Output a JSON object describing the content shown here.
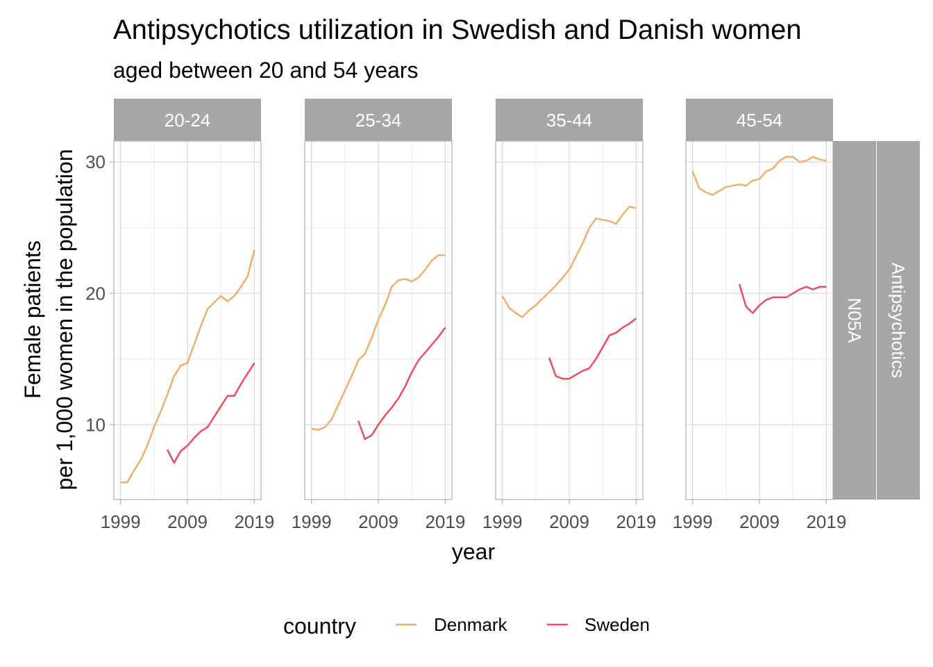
{
  "chart_data": {
    "type": "line",
    "title": "Antipsychotics utilization in Swedish and Danish women",
    "subtitle": "aged between 20 and 54 years",
    "xlabel": "year",
    "ylabel_line1": "Female patients",
    "ylabel_line2": "per 1,000 women in the population",
    "xlim": [
      1998,
      2020
    ],
    "ylim": [
      4.3,
      31.6
    ],
    "x_ticks": [
      1999,
      2009,
      2019
    ],
    "x_tick_labels": [
      "1999",
      "2009",
      "2019"
    ],
    "y_ticks": [
      10,
      20,
      30
    ],
    "y_tick_labels": [
      "10",
      "20",
      "30"
    ],
    "grid": true,
    "legend_position": "bottom",
    "legend_title": "country",
    "row_strips": [
      "N05A",
      "Antipsychotics"
    ],
    "colors": {
      "Denmark": "#EBB06E",
      "Sweden": "#EE4B5F"
    },
    "panels": [
      {
        "label": "20-24",
        "series": [
          {
            "name": "Denmark",
            "x": [
              1999,
              2000,
              2001,
              2002,
              2003,
              2004,
              2005,
              2006,
              2007,
              2008,
              2009,
              2010,
              2011,
              2012,
              2013,
              2014,
              2015,
              2016,
              2017,
              2018,
              2019
            ],
            "y": [
              5.6,
              5.6,
              6.5,
              7.3,
              8.4,
              9.8,
              11.0,
              12.3,
              13.7,
              14.5,
              14.7,
              16.1,
              17.5,
              18.8,
              19.3,
              19.8,
              19.4,
              19.8,
              20.5,
              21.3,
              23.3
            ]
          },
          {
            "name": "Sweden",
            "x": [
              2006,
              2007,
              2008,
              2009,
              2010,
              2011,
              2012,
              2013,
              2014,
              2015,
              2016,
              2017,
              2018,
              2019
            ],
            "y": [
              8.1,
              7.1,
              8.0,
              8.4,
              9.0,
              9.5,
              9.8,
              10.6,
              11.4,
              12.2,
              12.2,
              13.1,
              13.9,
              14.7
            ]
          }
        ]
      },
      {
        "label": "25-34",
        "series": [
          {
            "name": "Denmark",
            "x": [
              1999,
              2000,
              2001,
              2002,
              2003,
              2004,
              2005,
              2006,
              2007,
              2008,
              2009,
              2010,
              2011,
              2012,
              2013,
              2014,
              2015,
              2016,
              2017,
              2018,
              2019
            ],
            "y": [
              9.7,
              9.6,
              9.8,
              10.4,
              11.5,
              12.6,
              13.7,
              14.9,
              15.4,
              16.6,
              18.0,
              19.1,
              20.5,
              21.0,
              21.1,
              20.9,
              21.2,
              21.8,
              22.5,
              22.9,
              22.9
            ]
          },
          {
            "name": "Sweden",
            "x": [
              2006,
              2007,
              2008,
              2009,
              2010,
              2011,
              2012,
              2013,
              2014,
              2015,
              2016,
              2017,
              2018,
              2019
            ],
            "y": [
              10.3,
              8.9,
              9.2,
              10.0,
              10.7,
              11.3,
              12.0,
              12.9,
              14.0,
              14.9,
              15.5,
              16.1,
              16.7,
              17.4
            ]
          }
        ]
      },
      {
        "label": "35-44",
        "series": [
          {
            "name": "Denmark",
            "x": [
              1999,
              2000,
              2001,
              2002,
              2003,
              2004,
              2005,
              2006,
              2007,
              2008,
              2009,
              2010,
              2011,
              2012,
              2013,
              2014,
              2015,
              2016,
              2017,
              2018,
              2019
            ],
            "y": [
              19.8,
              18.9,
              18.5,
              18.2,
              18.7,
              19.1,
              19.6,
              20.1,
              20.6,
              21.2,
              21.8,
              22.8,
              23.8,
              25.0,
              25.7,
              25.6,
              25.5,
              25.3,
              26.0,
              26.6,
              26.5
            ]
          },
          {
            "name": "Sweden",
            "x": [
              2006,
              2007,
              2008,
              2009,
              2010,
              2011,
              2012,
              2013,
              2014,
              2015,
              2016,
              2017,
              2018,
              2019
            ],
            "y": [
              15.1,
              13.7,
              13.5,
              13.5,
              13.8,
              14.1,
              14.3,
              15.0,
              15.9,
              16.8,
              17.0,
              17.4,
              17.7,
              18.1
            ]
          }
        ]
      },
      {
        "label": "45-54",
        "series": [
          {
            "name": "Denmark",
            "x": [
              1999,
              2000,
              2001,
              2002,
              2003,
              2004,
              2005,
              2006,
              2007,
              2008,
              2009,
              2010,
              2011,
              2012,
              2013,
              2014,
              2015,
              2016,
              2017,
              2018,
              2019
            ],
            "y": [
              29.3,
              28.0,
              27.7,
              27.5,
              27.8,
              28.1,
              28.2,
              28.3,
              28.2,
              28.6,
              28.7,
              29.3,
              29.5,
              30.1,
              30.4,
              30.4,
              30.0,
              30.1,
              30.4,
              30.2,
              30.1
            ]
          },
          {
            "name": "Sweden",
            "x": [
              2006,
              2007,
              2008,
              2009,
              2010,
              2011,
              2012,
              2013,
              2014,
              2015,
              2016,
              2017,
              2018,
              2019
            ],
            "y": [
              20.7,
              19.0,
              18.5,
              19.1,
              19.5,
              19.7,
              19.7,
              19.7,
              20.0,
              20.3,
              20.5,
              20.3,
              20.5,
              20.5
            ]
          }
        ]
      }
    ]
  }
}
